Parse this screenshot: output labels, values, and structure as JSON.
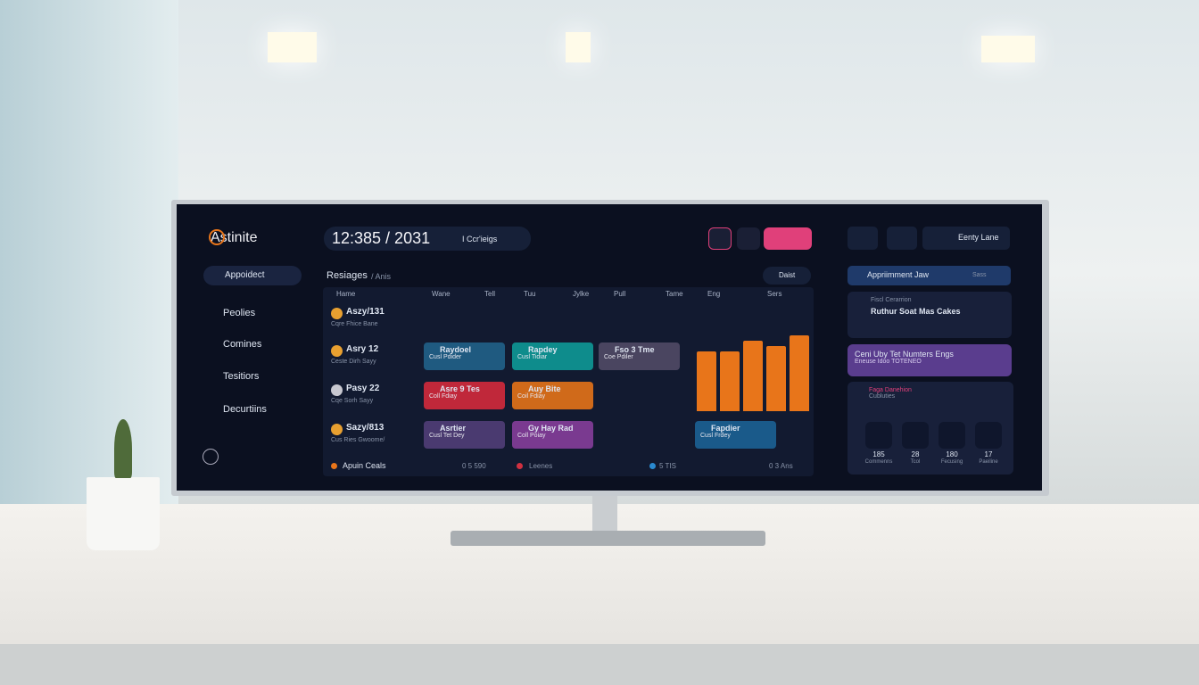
{
  "brand": "Astinite",
  "sidebar": {
    "search": "Appoidect",
    "nav": [
      "Peolies",
      "Comines",
      "Tesitiors",
      "Decurtiins"
    ]
  },
  "header": {
    "time": "12:385 / 2031",
    "search": "I Ccr'ieigs",
    "user": "Eenty Lane"
  },
  "schedule": {
    "title": "Resiages",
    "subtitle": "/ Anis",
    "filter": "Daist",
    "columns": [
      "Hame",
      "Wane",
      "Tell",
      "Tuu",
      "Jylke",
      "Pull",
      "Tame",
      "Eng",
      "Sers"
    ],
    "rows": [
      {
        "name": "Aszy/131",
        "sub": "Cqre Fhice Bane"
      },
      {
        "name": "Asry 12",
        "sub": "Ceste Dirh Sayy"
      },
      {
        "name": "Pasy 22",
        "sub": "Cqe Sorh Sayy"
      },
      {
        "name": "Sazy/813",
        "sub": "Cus Ries Gwoome/"
      }
    ],
    "events": [
      {
        "title": "Raydoel",
        "sub": "Cusl Pdider"
      },
      {
        "title": "Rapdey",
        "sub": "Cusl Tidiar"
      },
      {
        "title": "Fso 3 Tme",
        "sub": "Coe Pdiler"
      },
      {
        "title": "Asre 9 Tes",
        "sub": "Coll Fdiay"
      },
      {
        "title": "Auy Bite",
        "sub": "Coil Fdiay"
      },
      {
        "title": "Asrtier",
        "sub": "Cusl Tet Dey"
      },
      {
        "title": "Gy Hay Rad",
        "sub": "Coll Poiay"
      },
      {
        "title": "Fapdier",
        "sub": "Cusl Frdey"
      }
    ],
    "footer": [
      "Apuin Ceals",
      "0 5 590",
      "Leenes",
      "5 TIS",
      "0 3 Ans"
    ]
  },
  "chart": {
    "color": "#e8751a",
    "values": [
      67,
      67,
      79,
      73,
      85
    ]
  },
  "panel": {
    "title": "Appriimment Jaw",
    "action": "Sass",
    "card1": {
      "label": "Fiscl Cerarrion",
      "title": "Ruthur Soat Mas Cakes"
    },
    "card2": {
      "title": "Ceni Uby Tet Numters Engs",
      "sub": "Eneuse Idoo TOTENEO"
    },
    "card3": {
      "title": "Faga Danehion",
      "sub": "Cubluties"
    },
    "stats": [
      {
        "value": "185",
        "label": "Commenns"
      },
      {
        "value": "28",
        "label": "Tcol"
      },
      {
        "value": "180",
        "label": "Fecusing"
      },
      {
        "value": "17",
        "label": "Paeiline"
      }
    ]
  }
}
